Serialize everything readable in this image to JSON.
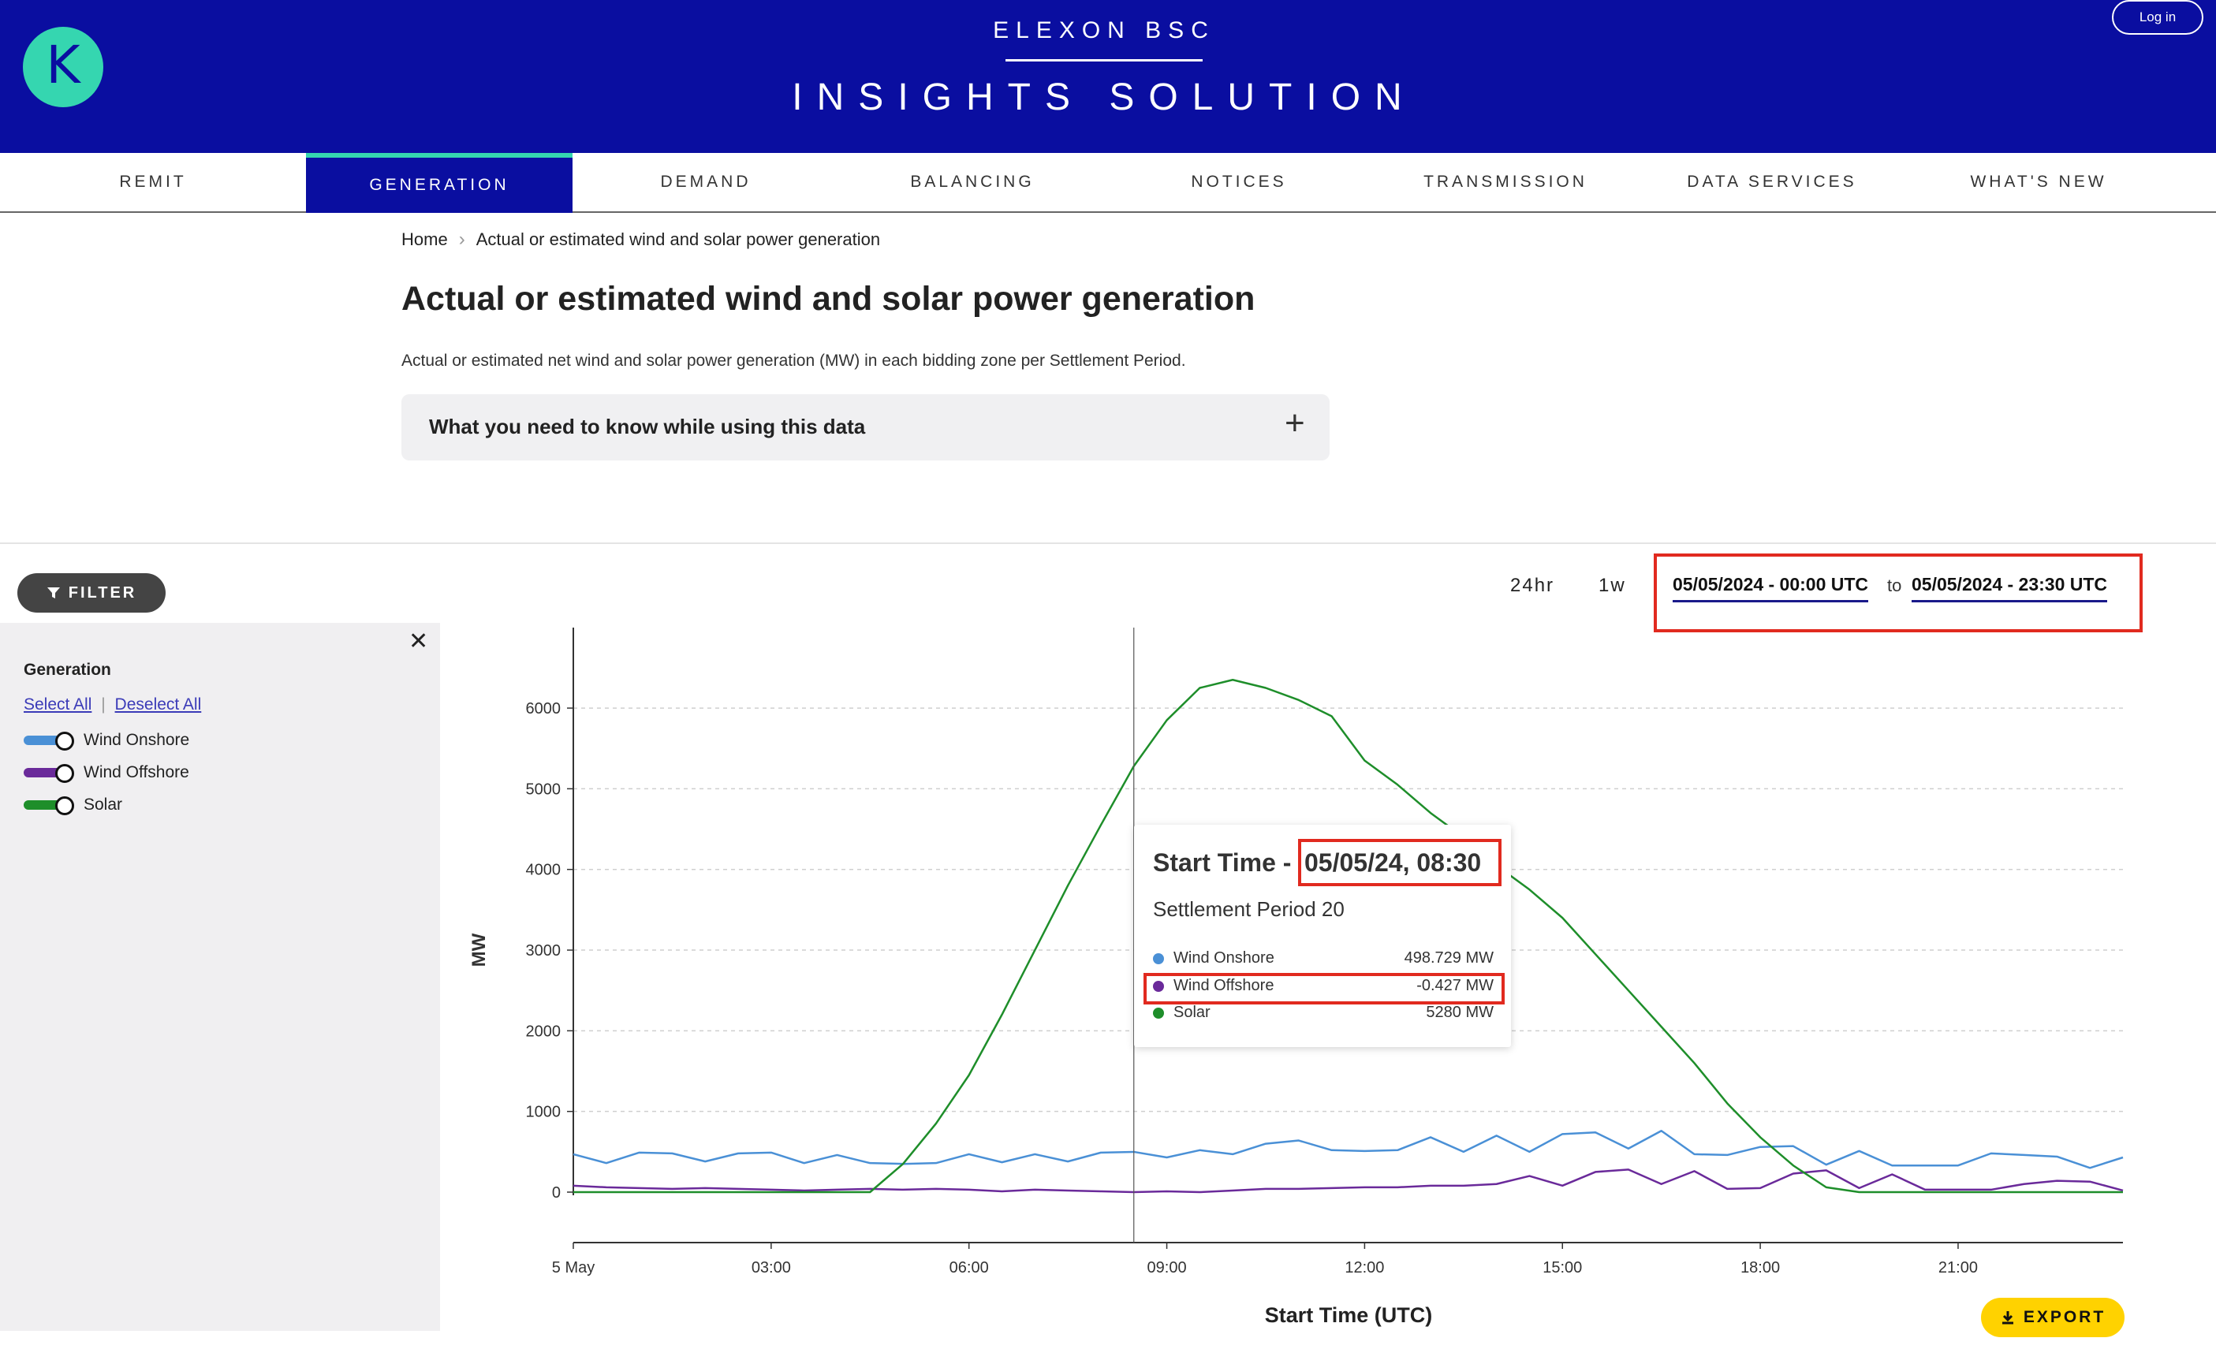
{
  "header": {
    "brand_top": "ELEXON BSC",
    "brand_main": "INSIGHTS SOLUTION",
    "logo_letter": "K",
    "login_label": "Log in",
    "bg_color": "#0a0ea0",
    "accent_color": "#35d6b0"
  },
  "nav": {
    "items": [
      {
        "label": "REMIT"
      },
      {
        "label": "GENERATION",
        "active": true
      },
      {
        "label": "DEMAND"
      },
      {
        "label": "BALANCING"
      },
      {
        "label": "NOTICES"
      },
      {
        "label": "TRANSMISSION"
      },
      {
        "label": "DATA SERVICES"
      },
      {
        "label": "WHAT'S NEW"
      }
    ]
  },
  "breadcrumb": {
    "home": "Home",
    "current": "Actual or estimated wind and solar power generation"
  },
  "page": {
    "title": "Actual or estimated wind and solar power generation",
    "description": "Actual or estimated net wind and solar power generation (MW) in each bidding zone per Settlement Period.",
    "accordion_label": "What you need to know while using this data"
  },
  "filter": {
    "button_label": "FILTER",
    "heading": "Generation",
    "select_all": "Select All",
    "deselect_all": "Deselect All",
    "toggles": [
      {
        "label": "Wind Onshore",
        "color": "#4a90d6"
      },
      {
        "label": "Wind Offshore",
        "color": "#6a2a9a"
      },
      {
        "label": "Solar",
        "color": "#1e8e2a"
      }
    ]
  },
  "range": {
    "opt_24h": "24hr",
    "opt_1w": "1w",
    "from": "05/05/2024 - 00:00 UTC",
    "to_label": "to",
    "to": "05/05/2024 - 23:30 UTC"
  },
  "tooltip": {
    "title_prefix": "Start Time -",
    "time": "05/05/24, 08:30",
    "settlement": "Settlement Period 20",
    "rows": [
      {
        "label": "Wind Onshore",
        "value": "498.729 MW",
        "color": "#4a90d6"
      },
      {
        "label": "Wind Offshore",
        "value": "-0.427 MW",
        "color": "#6a2a9a"
      },
      {
        "label": "Solar",
        "value": "5280 MW",
        "color": "#1e8e2a"
      }
    ]
  },
  "export_label": "EXPORT",
  "chart_data": {
    "type": "line",
    "xlabel": "Start Time (UTC)",
    "ylabel": "MW",
    "ylim": [
      0,
      6900
    ],
    "yticks": [
      0,
      1000,
      2000,
      3000,
      4000,
      5000,
      6000
    ],
    "xticks": [
      "5 May",
      "03:00",
      "06:00",
      "09:00",
      "12:00",
      "15:00",
      "18:00",
      "21:00"
    ],
    "xlim_hours": [
      0,
      23.5
    ],
    "grid": true,
    "hover_hour": 8.5,
    "series": [
      {
        "name": "Solar",
        "color": "#1e8e2a",
        "x": [
          0,
          0.5,
          1,
          1.5,
          2,
          2.5,
          3,
          3.5,
          4,
          4.5,
          5,
          5.5,
          6,
          6.5,
          7,
          7.5,
          8,
          8.5,
          9,
          9.5,
          10,
          10.5,
          11,
          11.5,
          12,
          12.5,
          13,
          13.5,
          14,
          14.5,
          15,
          15.5,
          16,
          16.5,
          17,
          17.5,
          18,
          18.5,
          19,
          19.5,
          20,
          20.5,
          21,
          21.5,
          22,
          22.5,
          23,
          23.5
        ],
        "values": [
          0,
          0,
          0,
          0,
          0,
          0,
          0,
          0,
          0,
          0,
          350,
          850,
          1450,
          2200,
          3000,
          3800,
          4550,
          5280,
          5850,
          6250,
          6350,
          6250,
          6100,
          5900,
          5350,
          5050,
          4700,
          4400,
          4050,
          3750,
          3400,
          2950,
          2500,
          2050,
          1600,
          1100,
          680,
          330,
          60,
          0,
          0,
          0,
          0,
          0,
          0,
          0,
          0,
          0
        ]
      },
      {
        "name": "Wind Onshore",
        "color": "#4a90d6",
        "x": [
          0,
          0.5,
          1,
          1.5,
          2,
          2.5,
          3,
          3.5,
          4,
          4.5,
          5,
          5.5,
          6,
          6.5,
          7,
          7.5,
          8,
          8.5,
          9,
          9.5,
          10,
          10.5,
          11,
          11.5,
          12,
          12.5,
          13,
          13.5,
          14,
          14.5,
          15,
          15.5,
          16,
          16.5,
          17,
          17.5,
          18,
          18.5,
          19,
          19.5,
          20,
          20.5,
          21,
          21.5,
          22,
          22.5,
          23,
          23.5
        ],
        "values": [
          470,
          360,
          490,
          480,
          380,
          480,
          490,
          360,
          460,
          360,
          350,
          360,
          470,
          370,
          470,
          380,
          490,
          499,
          430,
          520,
          470,
          600,
          640,
          520,
          510,
          520,
          680,
          500,
          700,
          500,
          720,
          740,
          540,
          760,
          470,
          460,
          560,
          570,
          340,
          510,
          330,
          330,
          330,
          480,
          460,
          440,
          300,
          430
        ]
      },
      {
        "name": "Wind Offshore",
        "color": "#6a2a9a",
        "x": [
          0,
          0.5,
          1,
          1.5,
          2,
          2.5,
          3,
          3.5,
          4,
          4.5,
          5,
          5.5,
          6,
          6.5,
          7,
          7.5,
          8,
          8.5,
          9,
          9.5,
          10,
          10.5,
          11,
          11.5,
          12,
          12.5,
          13,
          13.5,
          14,
          14.5,
          15,
          15.5,
          16,
          16.5,
          17,
          17.5,
          18,
          18.5,
          19,
          19.5,
          20,
          20.5,
          21,
          21.5,
          22,
          22.5,
          23,
          23.5
        ],
        "values": [
          80,
          60,
          50,
          40,
          50,
          40,
          30,
          20,
          30,
          40,
          30,
          40,
          30,
          10,
          30,
          20,
          10,
          0,
          10,
          0,
          20,
          40,
          40,
          50,
          60,
          60,
          80,
          80,
          100,
          200,
          80,
          250,
          280,
          100,
          260,
          40,
          50,
          230,
          270,
          50,
          220,
          30,
          30,
          30,
          100,
          140,
          130,
          20
        ]
      }
    ]
  }
}
